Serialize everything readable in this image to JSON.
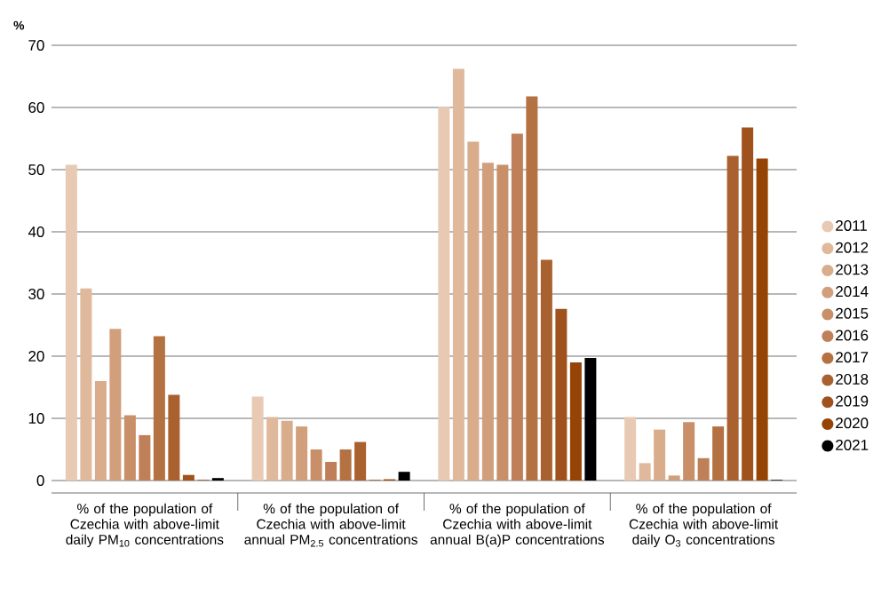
{
  "chart_data": {
    "type": "bar",
    "ylabel": "%",
    "categories": [
      "% of the population of Czechia with above-limit daily PM$_{10}$ concentrations",
      "% of the population of Czechia with above-limit annual PM$_{2.5}$ concentrations",
      "% of the population of Czechia with above-limit annual B(a)P concentrations",
      "% of the population of Czechia with above-limit daily O$_{3}$ concentrations"
    ],
    "series": [
      {
        "name": "2011",
        "color": "#e8cab4",
        "values": [
          50.8,
          13.5,
          60.1,
          10.2
        ]
      },
      {
        "name": "2012",
        "color": "#e0b99d",
        "values": [
          30.9,
          10.2,
          66.2,
          2.8
        ]
      },
      {
        "name": "2013",
        "color": "#d9ac8c",
        "values": [
          16.0,
          9.6,
          54.5,
          8.2
        ]
      },
      {
        "name": "2014",
        "color": "#d29f7c",
        "values": [
          24.4,
          8.7,
          51.1,
          0.8
        ]
      },
      {
        "name": "2015",
        "color": "#c98f69",
        "values": [
          10.5,
          5.0,
          50.8,
          9.4
        ]
      },
      {
        "name": "2016",
        "color": "#bf7f58",
        "values": [
          7.3,
          3.0,
          55.8,
          3.6
        ]
      },
      {
        "name": "2017",
        "color": "#b47142",
        "values": [
          23.2,
          5.0,
          61.8,
          8.7
        ]
      },
      {
        "name": "2018",
        "color": "#a8612f",
        "values": [
          13.8,
          6.2,
          35.5,
          52.2
        ]
      },
      {
        "name": "2019",
        "color": "#a0521e",
        "values": [
          0.9,
          0.1,
          27.6,
          56.8
        ]
      },
      {
        "name": "2020",
        "color": "#964406",
        "values": [
          0.1,
          0.2,
          19.0,
          51.8
        ]
      },
      {
        "name": "2021",
        "color": "#000000",
        "values": [
          0.4,
          1.4,
          19.7,
          0.1
        ]
      }
    ],
    "ylim": [
      -2,
      70
    ],
    "yticks": [
      0,
      10,
      20,
      30,
      40,
      50,
      60,
      70
    ],
    "grid": "y",
    "legend": "right"
  }
}
